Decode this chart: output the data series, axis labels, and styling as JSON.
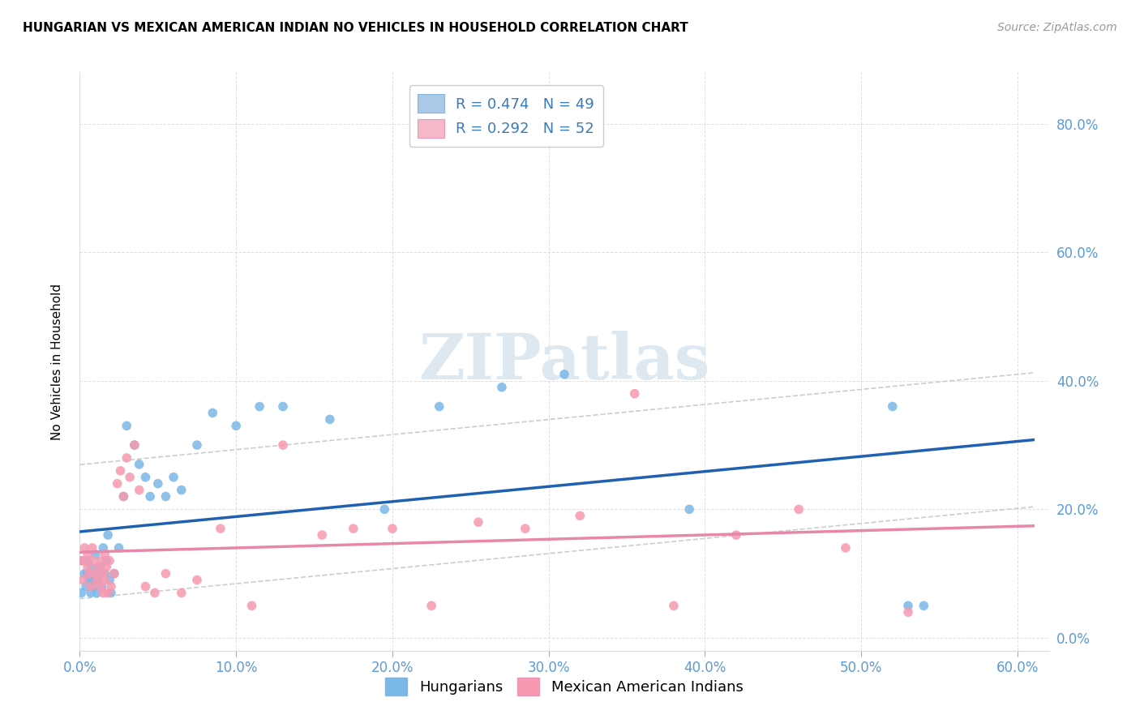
{
  "title": "HUNGARIAN VS MEXICAN AMERICAN INDIAN NO VEHICLES IN HOUSEHOLD CORRELATION CHART",
  "source": "Source: ZipAtlas.com",
  "ylabel_label": "No Vehicles in Household",
  "xlim": [
    0.0,
    0.62
  ],
  "ylim": [
    -0.02,
    0.88
  ],
  "legend_entries": [
    {
      "label": "R = 0.474   N = 49",
      "color": "#aac8e8"
    },
    {
      "label": "R = 0.292   N = 52",
      "color": "#f4b8c8"
    }
  ],
  "legend_bottom": [
    "Hungarians",
    "Mexican American Indians"
  ],
  "hungarian_color": "#7ab8e8",
  "mexican_color": "#f799b0",
  "trendline_hungarian_color": "#2060b0",
  "trendline_mexican_color": "#e888a8",
  "trendline_ci_color": "#c8c8c8",
  "watermark": "ZIPatlas",
  "hungarian_x": [
    0.001,
    0.002,
    0.003,
    0.004,
    0.005,
    0.005,
    0.006,
    0.007,
    0.007,
    0.008,
    0.009,
    0.01,
    0.01,
    0.011,
    0.012,
    0.013,
    0.014,
    0.015,
    0.016,
    0.017,
    0.018,
    0.019,
    0.02,
    0.022,
    0.025,
    0.028,
    0.03,
    0.035,
    0.038,
    0.042,
    0.045,
    0.05,
    0.055,
    0.06,
    0.065,
    0.075,
    0.085,
    0.1,
    0.115,
    0.13,
    0.16,
    0.195,
    0.23,
    0.27,
    0.31,
    0.39,
    0.52,
    0.53,
    0.54
  ],
  "hungarian_y": [
    0.07,
    0.12,
    0.1,
    0.08,
    0.1,
    0.12,
    0.09,
    0.07,
    0.11,
    0.09,
    0.08,
    0.1,
    0.13,
    0.07,
    0.09,
    0.11,
    0.08,
    0.14,
    0.1,
    0.12,
    0.16,
    0.09,
    0.07,
    0.1,
    0.14,
    0.22,
    0.33,
    0.3,
    0.27,
    0.25,
    0.22,
    0.24,
    0.22,
    0.25,
    0.23,
    0.3,
    0.35,
    0.33,
    0.36,
    0.36,
    0.34,
    0.2,
    0.36,
    0.39,
    0.41,
    0.2,
    0.36,
    0.05,
    0.05
  ],
  "mexican_x": [
    0.001,
    0.002,
    0.003,
    0.004,
    0.005,
    0.005,
    0.006,
    0.007,
    0.008,
    0.009,
    0.01,
    0.011,
    0.012,
    0.013,
    0.014,
    0.015,
    0.015,
    0.016,
    0.016,
    0.017,
    0.018,
    0.019,
    0.02,
    0.022,
    0.024,
    0.026,
    0.028,
    0.03,
    0.032,
    0.035,
    0.038,
    0.042,
    0.048,
    0.055,
    0.065,
    0.075,
    0.09,
    0.11,
    0.13,
    0.155,
    0.175,
    0.2,
    0.225,
    0.255,
    0.285,
    0.32,
    0.355,
    0.38,
    0.42,
    0.46,
    0.49,
    0.53
  ],
  "mexican_y": [
    0.12,
    0.09,
    0.14,
    0.12,
    0.11,
    0.13,
    0.1,
    0.08,
    0.14,
    0.12,
    0.1,
    0.09,
    0.11,
    0.08,
    0.12,
    0.07,
    0.1,
    0.09,
    0.13,
    0.11,
    0.07,
    0.12,
    0.08,
    0.1,
    0.24,
    0.26,
    0.22,
    0.28,
    0.25,
    0.3,
    0.23,
    0.08,
    0.07,
    0.1,
    0.07,
    0.09,
    0.17,
    0.05,
    0.3,
    0.16,
    0.17,
    0.17,
    0.05,
    0.18,
    0.17,
    0.19,
    0.38,
    0.05,
    0.16,
    0.2,
    0.14,
    0.04
  ]
}
